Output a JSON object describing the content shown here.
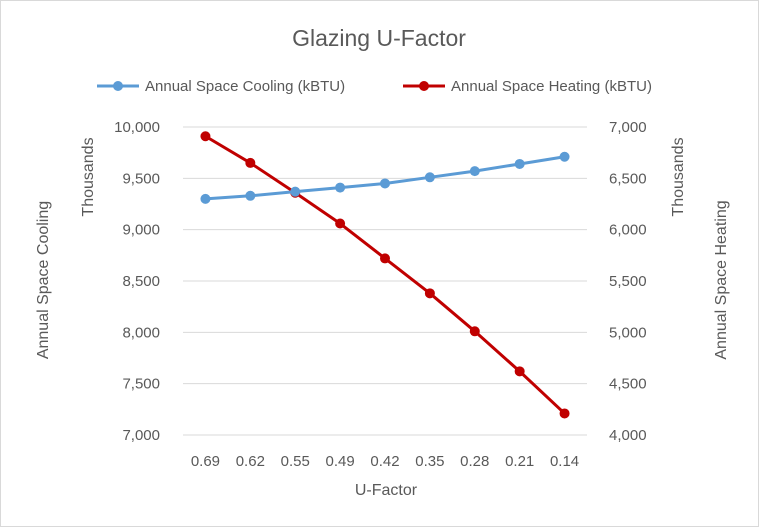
{
  "chart_data": {
    "type": "line",
    "title": "Glazing U-Factor",
    "xlabel": "U-Factor",
    "ylabel_left": "Annual Space Cooling",
    "ylabel_right": "Annual Space Heating",
    "left_unit_label": "Thousands",
    "right_unit_label": "Thousands",
    "categories": [
      "0.69",
      "0.62",
      "0.55",
      "0.49",
      "0.42",
      "0.35",
      "0.28",
      "0.21",
      "0.14"
    ],
    "y_left_range": [
      7000,
      10000
    ],
    "y_left_ticks": [
      "7,000",
      "7,500",
      "8,000",
      "8,500",
      "9,000",
      "9,500",
      "10,000"
    ],
    "y_right_range": [
      4000,
      7000
    ],
    "y_right_ticks": [
      "4,000",
      "4,500",
      "5,000",
      "5,500",
      "6,000",
      "6,500",
      "7,000"
    ],
    "grid": true,
    "legend_position": "top",
    "series": [
      {
        "name": "Annual Space Cooling (kBTU)",
        "axis": "left",
        "color": "#5b9bd5",
        "values": [
          9300,
          9330,
          9370,
          9410,
          9450,
          9510,
          9570,
          9640,
          9710
        ]
      },
      {
        "name": "Annual Space Heating (kBTU)",
        "axis": "right",
        "color": "#c00000",
        "values": [
          6910,
          6650,
          6360,
          6060,
          5720,
          5380,
          5010,
          4620,
          4210
        ]
      }
    ]
  }
}
